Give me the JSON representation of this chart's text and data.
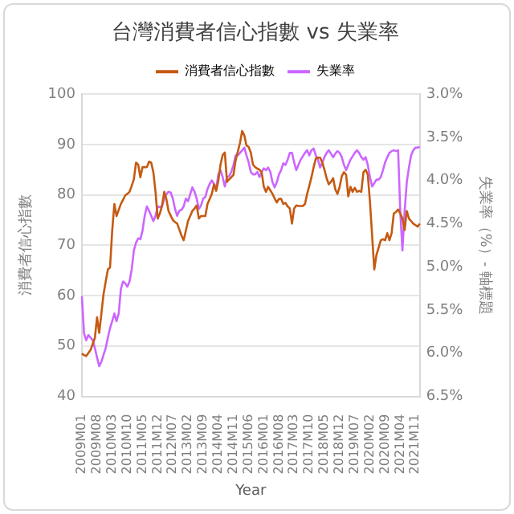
{
  "chart_data": {
    "type": "line",
    "title": "台灣消費者信心指數 vs 失業率",
    "xlabel": "Year",
    "ylabel": "消費者信心指數",
    "y2label": "失業率（%）- 軸標題",
    "categories": [
      "2009M01",
      null,
      null,
      null,
      null,
      null,
      null,
      "2009M08",
      null,
      null,
      null,
      null,
      null,
      null,
      "2010M03",
      null,
      null,
      null,
      null,
      null,
      null,
      "2010M10",
      null,
      null,
      null,
      null,
      null,
      null,
      "2011M05",
      null,
      null,
      null,
      null,
      null,
      null,
      "2011M12",
      null,
      null,
      null,
      null,
      null,
      null,
      "2012M07",
      null,
      null,
      null,
      null,
      null,
      null,
      "2013M02",
      null,
      null,
      null,
      null,
      null,
      null,
      "2013M09",
      null,
      null,
      null,
      null,
      null,
      null,
      "2014M04",
      null,
      null,
      null,
      null,
      null,
      null,
      "2014M11",
      null,
      null,
      null,
      null,
      null,
      null,
      "2015M06",
      null,
      null,
      null,
      null,
      null,
      null,
      "2016M01",
      null,
      null,
      null,
      null,
      null,
      null,
      "2016M08",
      null,
      null,
      null,
      null,
      null,
      null,
      "2017M03",
      null,
      null,
      null,
      null,
      null,
      null,
      "2017M10",
      null,
      null,
      null,
      null,
      null,
      null,
      "2018M05",
      null,
      null,
      null,
      null,
      null,
      null,
      "2018M12",
      null,
      null,
      null,
      null,
      null,
      null,
      "2019M07",
      null,
      null,
      null,
      null,
      null,
      null,
      "2020M02",
      null,
      null,
      null,
      null,
      null,
      null,
      "2020M09",
      null,
      null,
      null,
      null,
      null,
      null,
      "2021M04",
      null,
      null,
      null,
      null,
      null,
      null,
      "2021M11",
      null,
      null
    ],
    "series": [
      {
        "name": "消費者信心指數",
        "color": "#c55a11",
        "values": [
          48.5,
          48.2,
          48,
          48.6,
          49.2,
          50.4,
          51.6,
          55.7,
          52.6,
          56.4,
          60.3,
          62.8,
          65.2,
          65.6,
          72.9,
          78.2,
          75.8,
          77,
          78.2,
          79,
          79.9,
          80.2,
          80.6,
          81.8,
          83.1,
          86.4,
          86,
          83.5,
          85.5,
          85.5,
          85.5,
          86.6,
          86.4,
          84.5,
          80.6,
          75.3,
          76.3,
          77.8,
          80.6,
          79.2,
          76.8,
          75.9,
          75,
          74.6,
          74.3,
          73.1,
          71.9,
          71,
          72.9,
          74.8,
          75.8,
          76.8,
          77.3,
          77.9,
          75.3,
          75.8,
          75.8,
          75.8,
          78.2,
          79.2,
          80.2,
          82.1,
          80.8,
          82.8,
          86,
          87.9,
          88.4,
          82.6,
          83.1,
          83.5,
          84,
          86.9,
          88.6,
          90.3,
          92.7,
          91.8,
          89.8,
          89.5,
          88.4,
          86,
          85.5,
          85.2,
          85,
          84.5,
          81.6,
          80.6,
          81.6,
          80.9,
          80.2,
          79.3,
          78.5,
          79.2,
          79.2,
          78.2,
          78.4,
          77.7,
          77.3,
          74.3,
          77.3,
          77.9,
          77.8,
          77.8,
          77.8,
          78.2,
          80.2,
          81.8,
          83.5,
          85.5,
          87.2,
          87.4,
          87.4,
          86.4,
          85,
          83.3,
          82.1,
          82.6,
          83.3,
          81.1,
          80.2,
          81.6,
          83.7,
          84.5,
          84,
          79.7,
          81.6,
          80.6,
          81.4,
          80.6,
          80.8,
          80.6,
          84.5,
          85,
          84,
          78.7,
          71.9,
          65.2,
          68.1,
          69.5,
          71,
          71.2,
          71,
          72.4,
          71,
          72.4,
          76.3,
          76.6,
          77.1,
          76.3,
          75.3,
          73,
          76.8,
          75.3,
          74.8,
          74.3,
          74,
          73.7,
          74.3
        ]
      },
      {
        "name": "失業率",
        "color": "#cc66ff",
        "axis": "y2",
        "values": [
          5.34,
          5.77,
          5.85,
          5.79,
          5.82,
          5.85,
          5.94,
          6.05,
          6.15,
          6.1,
          6.02,
          5.94,
          5.82,
          5.71,
          5.63,
          5.54,
          5.63,
          5.54,
          5.26,
          5.17,
          5.19,
          5.23,
          5.17,
          5.03,
          4.81,
          4.72,
          4.67,
          4.68,
          4.58,
          4.41,
          4.3,
          4.35,
          4.41,
          4.47,
          4.41,
          4.3,
          4.31,
          4.3,
          4.21,
          4.16,
          4.13,
          4.14,
          4.21,
          4.33,
          4.41,
          4.35,
          4.34,
          4.3,
          4.21,
          4.24,
          4.16,
          4.08,
          4.13,
          4.21,
          4.33,
          4.29,
          4.21,
          4.19,
          4.1,
          4.04,
          4.0,
          4.04,
          4.1,
          3.93,
          3.88,
          3.96,
          4.07,
          3.96,
          3.95,
          3.9,
          3.82,
          3.71,
          3.71,
          3.68,
          3.65,
          3.62,
          3.71,
          3.79,
          3.9,
          3.93,
          3.93,
          3.9,
          3.96,
          3.9,
          3.86,
          3.88,
          3.85,
          3.9,
          4.02,
          4.08,
          4.02,
          3.93,
          3.88,
          3.8,
          3.82,
          3.76,
          3.68,
          3.68,
          3.79,
          3.88,
          3.82,
          3.76,
          3.72,
          3.68,
          3.65,
          3.71,
          3.65,
          3.63,
          3.71,
          3.76,
          3.85,
          3.79,
          3.73,
          3.68,
          3.65,
          3.69,
          3.73,
          3.69,
          3.66,
          3.68,
          3.73,
          3.82,
          3.88,
          3.82,
          3.76,
          3.72,
          3.68,
          3.65,
          3.68,
          3.73,
          3.76,
          3.73,
          3.82,
          3.96,
          4.07,
          4.03,
          3.99,
          3.99,
          3.96,
          3.88,
          3.79,
          3.73,
          3.68,
          3.66,
          3.65,
          3.66,
          3.65,
          4.36,
          4.81,
          4.36,
          4.02,
          3.85,
          3.71,
          3.65,
          3.62,
          3.62,
          3.61
        ]
      }
    ],
    "ylim": [
      40,
      100
    ],
    "yticks": [
      40,
      50,
      60,
      70,
      80,
      90,
      100
    ],
    "y2lim": [
      6.5,
      3.0
    ],
    "y2ticks": [
      {
        "value": 6.5,
        "label": "6.5%"
      },
      {
        "value": 6.0,
        "label": "6.0%"
      },
      {
        "value": 5.5,
        "label": "5.5%"
      },
      {
        "value": 5.0,
        "label": "5.0%"
      },
      {
        "value": 4.5,
        "label": "4.5%"
      },
      {
        "value": 4.0,
        "label": "4.0%"
      },
      {
        "value": 3.5,
        "label": "3.5%"
      },
      {
        "value": 3.0,
        "label": "3.0%"
      }
    ],
    "grid": "y",
    "legend": "top",
    "marker": "none",
    "line_style": "solid"
  }
}
